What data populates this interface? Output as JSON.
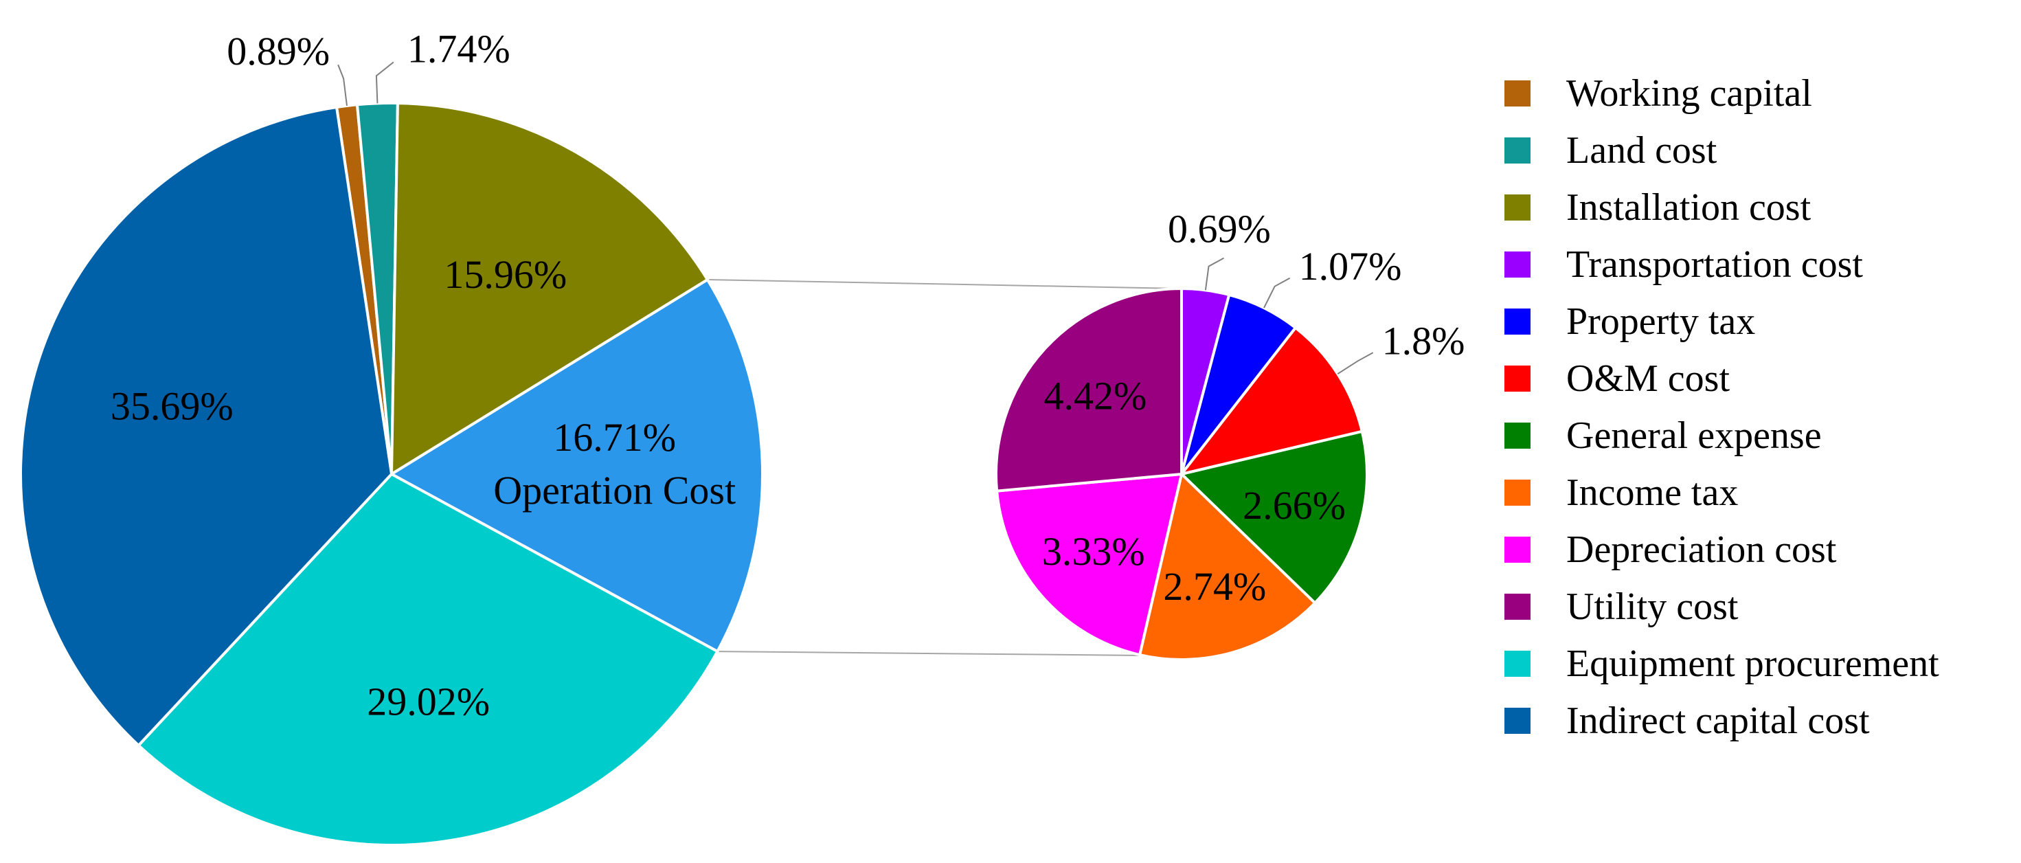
{
  "chart_data": [
    {
      "type": "pie",
      "series": [
        {
          "slices": [
            {
              "label": "Working capital",
              "value": 0.89,
              "data_label": "0.89%",
              "color": "#b3640a"
            },
            {
              "label": "Land cost",
              "value": 1.74,
              "data_label": "1.74%",
              "color": "#0f9896"
            },
            {
              "label": "Installation cost",
              "value": 15.96,
              "data_label": "15.96%",
              "color": "#808000"
            },
            {
              "label": "Operation Cost",
              "value": 16.71,
              "data_label": "16.71%",
              "category_label": "Operation Cost",
              "color": "#2b97ea"
            },
            {
              "label": "Equipment procurement",
              "value": 29.02,
              "data_label": "29.02%",
              "color": "#00cccc"
            },
            {
              "label": "Indirect capital cost",
              "value": 35.69,
              "data_label": "35.69%",
              "color": "#0060a8"
            }
          ]
        }
      ]
    },
    {
      "type": "pie",
      "series": [
        {
          "slices": [
            {
              "label": "Transportation cost",
              "value": 0.69,
              "data_label": "0.69%",
              "color": "#9900ff"
            },
            {
              "label": "Property tax",
              "value": 1.07,
              "data_label": "1.07%",
              "color": "#0000ff"
            },
            {
              "label": "O&M cost",
              "value": 1.8,
              "data_label": "1.8%",
              "color": "#ff0000"
            },
            {
              "label": "General expense",
              "value": 2.66,
              "data_label": "2.66%",
              "color": "#008000"
            },
            {
              "label": "Income tax",
              "value": 2.74,
              "data_label": "2.74%",
              "color": "#ff6600"
            },
            {
              "label": "Depreciation cost",
              "value": 3.33,
              "data_label": "3.33%",
              "color": "#ff00ff"
            },
            {
              "label": "Utility cost",
              "value": 4.42,
              "data_label": "4.42%",
              "color": "#990080"
            }
          ]
        }
      ]
    }
  ],
  "legend": {
    "placement": "right",
    "entries": [
      {
        "label": "Working capital",
        "color": "#b3640a"
      },
      {
        "label": "Land cost",
        "color": "#0f9896"
      },
      {
        "label": "Installation cost",
        "color": "#808000"
      },
      {
        "label": "Transportation cost",
        "color": "#9900ff"
      },
      {
        "label": "Property tax",
        "color": "#0000ff"
      },
      {
        "label": "O&M cost",
        "color": "#ff0000"
      },
      {
        "label": "General expense",
        "color": "#008000"
      },
      {
        "label": "Income tax",
        "color": "#ff6600"
      },
      {
        "label": "Depreciation cost",
        "color": "#ff00ff"
      },
      {
        "label": "Utility cost",
        "color": "#990080"
      },
      {
        "label": "Equipment procurement",
        "color": "#00cccc"
      },
      {
        "label": "Indirect capital cost",
        "color": "#0060a8"
      }
    ]
  }
}
